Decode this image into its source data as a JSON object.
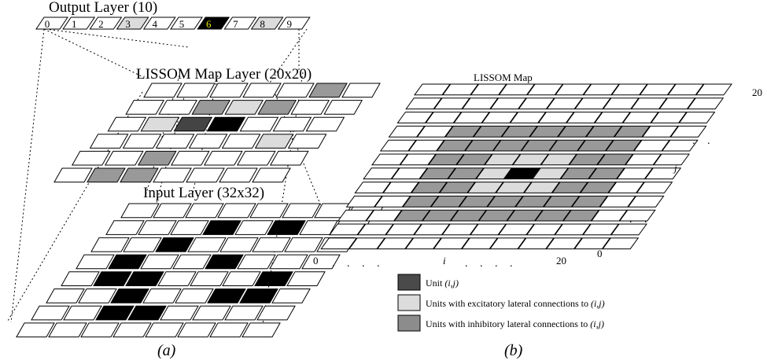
{
  "panel_a": {
    "output_layer": {
      "title": "Output Layer (10)",
      "labels": [
        "0",
        "1",
        "2",
        "3",
        "4",
        "5",
        "6",
        "7",
        "8",
        "9"
      ],
      "highlight_index": 6,
      "light_indices": [
        3,
        8
      ]
    },
    "map_layer": {
      "title": "LISSOM Map Layer (20x20)",
      "rows": [
        "0000020",
        "0021200",
        "0143000",
        "0000010",
        "0020000",
        "0220000"
      ]
    },
    "input_layer": {
      "title": "Input Layer (32x32)",
      "rows": [
        "00000000",
        "00030300",
        "00300000",
        "03003000",
        "03300030",
        "00300330",
        "00330000",
        "00000000"
      ]
    },
    "caption": "(a)"
  },
  "panel_b": {
    "title": "LISSOM Map",
    "rows": [
      "00000000000",
      "00000000000",
      "00000000000",
      "00222222200",
      "00222222200",
      "00221112200",
      "00221312200",
      "00221112200",
      "00222222200",
      "00222222200",
      "00000000000",
      "00000000000"
    ],
    "x_axis": {
      "start": "0",
      "dots_left": ". . . .",
      "mid": "i",
      "dots_right": ". . . .",
      "end": "20"
    },
    "y_axis": {
      "start": "0",
      "end": "20",
      "mid": "j",
      "dots": ". ."
    },
    "caption": "(b)"
  },
  "legend": [
    {
      "key": "unit",
      "label": "Unit",
      "label_italic": "(i,j)",
      "color": "#4a4a4a"
    },
    {
      "key": "excitatory",
      "label": "Units with excitatory lateral connections to",
      "label_italic": "(i,j)",
      "color": "#dcdcdc"
    },
    {
      "key": "inhibitory",
      "label": "Units with inhibitory lateral connections to",
      "label_italic": "(i,j)",
      "color": "#8c8c8c"
    }
  ],
  "colors": {
    "white": "#ffffff",
    "light": "#dcdcdc",
    "medium": "#999999",
    "dark": "#444444",
    "black": "#000000",
    "highlight_text": "#e8e800"
  }
}
